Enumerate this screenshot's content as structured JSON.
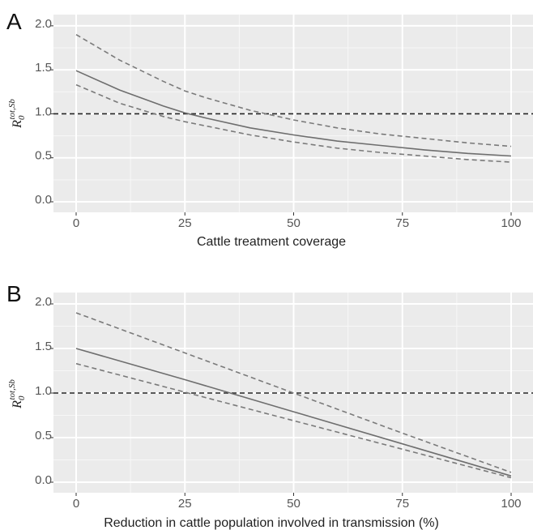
{
  "chart_data": [
    {
      "panel": "A",
      "type": "line",
      "xlabel": "Cattle treatment coverage",
      "ylabel": {
        "main": "R",
        "sub": "0",
        "sup": "tot,Sb"
      },
      "xlim": [
        0,
        100
      ],
      "ylim": [
        0,
        2.1
      ],
      "xticks": [
        0,
        25,
        50,
        75,
        100
      ],
      "yticks": [
        "0.0",
        "0.5",
        "1.0",
        "1.5",
        "2.0"
      ],
      "grid": true,
      "reference_line": {
        "y": 1.0,
        "style": "dashed",
        "color": "#222222"
      },
      "series": [
        {
          "style": "solid",
          "color": "#6e6e6e",
          "x": [
            0,
            10,
            20,
            25,
            30,
            40,
            50,
            60,
            70,
            80,
            90,
            100
          ],
          "y": [
            1.49,
            1.27,
            1.09,
            1.01,
            0.95,
            0.84,
            0.76,
            0.69,
            0.64,
            0.59,
            0.55,
            0.52
          ]
        },
        {
          "style": "dashed",
          "color": "#7a7a7a",
          "x": [
            0,
            10,
            20,
            25,
            30,
            40,
            50,
            60,
            70,
            80,
            90,
            100
          ],
          "y": [
            1.9,
            1.61,
            1.37,
            1.26,
            1.18,
            1.04,
            0.93,
            0.84,
            0.77,
            0.72,
            0.67,
            0.63
          ]
        },
        {
          "style": "dashed",
          "color": "#7a7a7a",
          "x": [
            0,
            10,
            20,
            25,
            30,
            40,
            50,
            60,
            70,
            80,
            90,
            100
          ],
          "y": [
            1.33,
            1.12,
            0.97,
            0.91,
            0.86,
            0.76,
            0.68,
            0.61,
            0.56,
            0.52,
            0.48,
            0.45
          ]
        }
      ]
    },
    {
      "panel": "B",
      "type": "line",
      "xlabel": "Reduction in cattle population involved in transmission (%)",
      "ylabel": {
        "main": "R",
        "sub": "0",
        "sup": "tot,Sb"
      },
      "xlim": [
        0,
        100
      ],
      "ylim": [
        0,
        2.1
      ],
      "xticks": [
        0,
        25,
        50,
        75,
        100
      ],
      "yticks": [
        "0.0",
        "0.5",
        "1.0",
        "1.5",
        "2.0"
      ],
      "grid": true,
      "reference_line": {
        "y": 1.0,
        "style": "dashed",
        "color": "#222222"
      },
      "series": [
        {
          "style": "solid",
          "color": "#6e6e6e",
          "x": [
            0,
            25,
            50,
            75,
            100
          ],
          "y": [
            1.5,
            1.15,
            0.79,
            0.43,
            0.07
          ]
        },
        {
          "style": "dashed",
          "color": "#7a7a7a",
          "x": [
            0,
            25,
            50,
            75,
            100
          ],
          "y": [
            1.9,
            1.45,
            1.0,
            0.55,
            0.11
          ]
        },
        {
          "style": "dashed",
          "color": "#7a7a7a",
          "x": [
            0,
            25,
            50,
            75,
            100
          ],
          "y": [
            1.33,
            1.01,
            0.69,
            0.37,
            0.05
          ]
        }
      ]
    }
  ]
}
